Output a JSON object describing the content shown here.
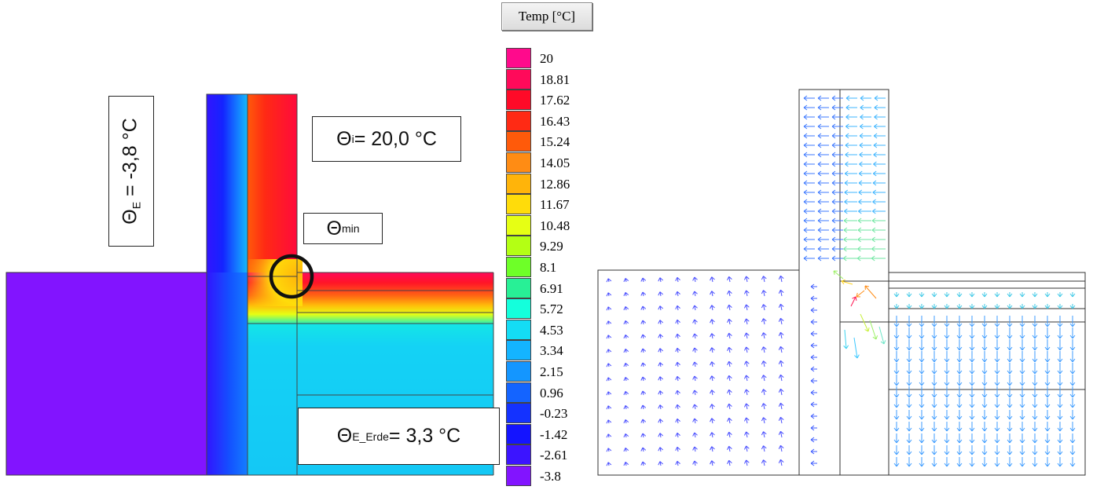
{
  "thermal": {
    "label_theta_e": {
      "symbol": "Θ",
      "sub": "E",
      "text": " = -3,8 °C"
    },
    "label_theta_i": {
      "symbol": "Θ",
      "sub": "i",
      "text": " = 20,0 °C"
    },
    "label_theta_min": {
      "symbol": "Θ",
      "sub": "min",
      "text": ""
    },
    "label_theta_erde": {
      "symbol": "Θ",
      "sub": "E_Erde",
      "text": " = 3,3 °C"
    }
  },
  "legend": {
    "title": "Temp [°C]",
    "entries": [
      {
        "value": "20",
        "color": "#ff0a8c"
      },
      {
        "value": "18.81",
        "color": "#ff0a5a"
      },
      {
        "value": "17.62",
        "color": "#ff0a28"
      },
      {
        "value": "16.43",
        "color": "#ff2a14"
      },
      {
        "value": "15.24",
        "color": "#ff5a0a"
      },
      {
        "value": "14.05",
        "color": "#ff8c14"
      },
      {
        "value": "12.86",
        "color": "#ffb40a"
      },
      {
        "value": "11.67",
        "color": "#ffdc0a"
      },
      {
        "value": "10.48",
        "color": "#e6ff14"
      },
      {
        "value": "9.29",
        "color": "#b4ff14"
      },
      {
        "value": "8.1",
        "color": "#6eff28"
      },
      {
        "value": "6.91",
        "color": "#28f096"
      },
      {
        "value": "5.72",
        "color": "#14ffdc"
      },
      {
        "value": "4.53",
        "color": "#14dcf5"
      },
      {
        "value": "3.34",
        "color": "#14b4ff"
      },
      {
        "value": "2.15",
        "color": "#1496ff"
      },
      {
        "value": "0.96",
        "color": "#1464ff"
      },
      {
        "value": "-0.23",
        "color": "#1432ff"
      },
      {
        "value": "-1.42",
        "color": "#1414ff"
      },
      {
        "value": "-2.61",
        "color": "#3c14ff"
      },
      {
        "value": "-3.8",
        "color": "#8214ff"
      }
    ]
  }
}
